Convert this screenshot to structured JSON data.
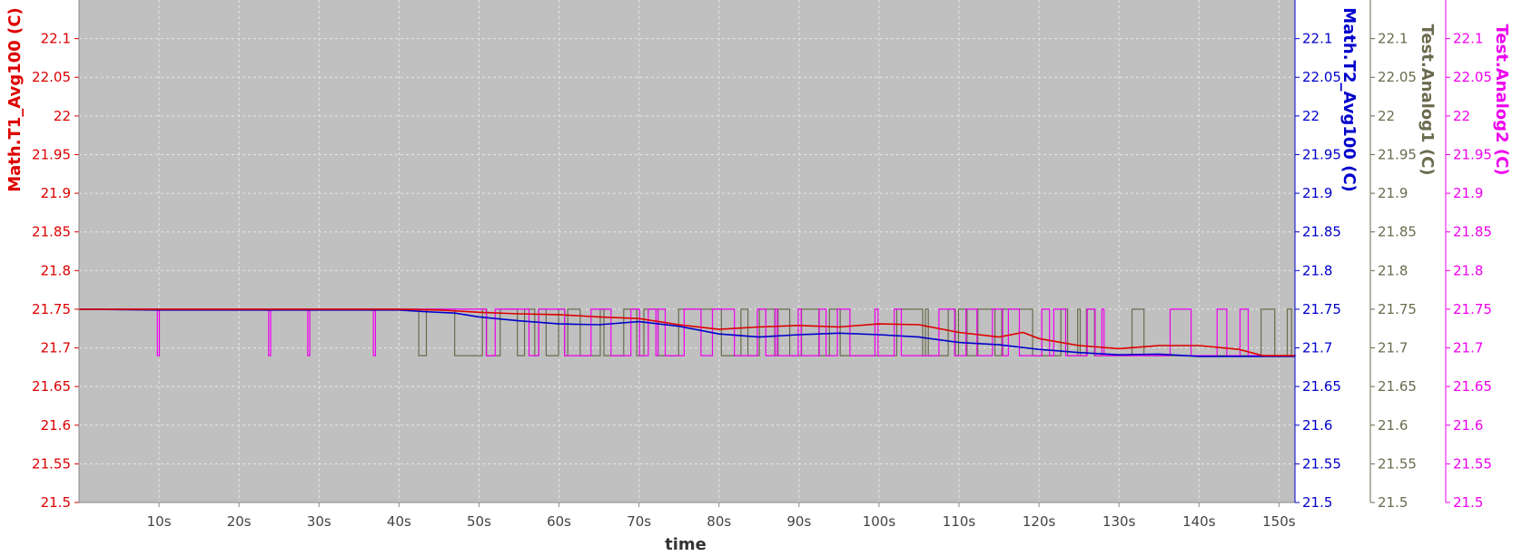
{
  "chart_data": {
    "type": "line",
    "xlabel": "time",
    "x_ticks": [
      "10s",
      "20s",
      "30s",
      "40s",
      "50s",
      "60s",
      "70s",
      "80s",
      "90s",
      "100s",
      "110s",
      "120s",
      "130s",
      "140s",
      "150s"
    ],
    "x_tick_values": [
      10,
      20,
      30,
      40,
      50,
      60,
      70,
      80,
      90,
      100,
      110,
      120,
      130,
      140,
      150
    ],
    "xlim": [
      0,
      152
    ],
    "ylim": [
      21.5,
      22.15
    ],
    "y_ticks": [
      "21.5",
      "21.55",
      "21.6",
      "21.65",
      "21.7",
      "21.75",
      "21.8",
      "21.85",
      "21.9",
      "21.95",
      "22",
      "22.05",
      "22.1"
    ],
    "y_tick_values": [
      21.5,
      21.55,
      21.6,
      21.65,
      21.7,
      21.75,
      21.8,
      21.85,
      21.9,
      21.95,
      22.0,
      22.05,
      22.1
    ],
    "grid": true,
    "plot_background": "#c0c0c0",
    "axes": [
      {
        "label": "Math.T1_Avg100 (C)",
        "color": "#dd0000",
        "side": "left"
      },
      {
        "label": "Math.T2_Avg100 (C)",
        "color": "#0000cc",
        "side": "right"
      },
      {
        "label": "Test.Analog1 (C)",
        "color": "#6b6b4f",
        "side": "right"
      },
      {
        "label": "Test.Analog2 (C)",
        "color": "#ee00ee",
        "side": "right"
      }
    ],
    "series": [
      {
        "name": "Math.T1_Avg100 (C)",
        "color": "#dd0000",
        "style": "line",
        "x": [
          0,
          10,
          20,
          30,
          40,
          45,
          50,
          55,
          60,
          65,
          70,
          75,
          80,
          85,
          90,
          95,
          100,
          105,
          110,
          115,
          118,
          120,
          125,
          130,
          135,
          140,
          145,
          148,
          152
        ],
        "y": [
          21.75,
          21.75,
          21.75,
          21.75,
          21.75,
          21.749,
          21.746,
          21.744,
          21.743,
          21.74,
          21.738,
          21.73,
          21.724,
          21.727,
          21.729,
          21.727,
          21.731,
          21.73,
          21.72,
          21.714,
          21.72,
          21.712,
          21.703,
          21.699,
          21.703,
          21.703,
          21.698,
          21.69,
          21.69
        ]
      },
      {
        "name": "Math.T2_Avg100 (C)",
        "color": "#0000cc",
        "style": "line",
        "x": [
          0,
          10,
          20,
          30,
          40,
          43,
          47,
          50,
          55,
          60,
          65,
          70,
          75,
          80,
          85,
          90,
          95,
          100,
          105,
          110,
          115,
          120,
          125,
          130,
          135,
          140,
          145,
          152
        ],
        "y": [
          21.75,
          21.749,
          21.749,
          21.749,
          21.749,
          21.747,
          21.745,
          21.74,
          21.735,
          21.731,
          21.73,
          21.734,
          21.728,
          21.718,
          21.714,
          21.717,
          21.719,
          21.717,
          21.714,
          21.707,
          21.704,
          21.698,
          21.694,
          21.691,
          21.692,
          21.689,
          21.689,
          21.689
        ]
      },
      {
        "name": "Test.Analog1 (C)",
        "color": "#6b6b4f",
        "style": "step-noise",
        "levels": [
          21.69,
          21.75
        ],
        "x_start": 41,
        "x_end": 152
      },
      {
        "name": "Test.Analog2 (C)",
        "color": "#ee00ee",
        "style": "step-noise",
        "levels": [
          21.69,
          21.75
        ],
        "early_dips_x": [
          9.8,
          23.7,
          28.6,
          36.8
        ],
        "x_start": 44,
        "x_end": 146
      }
    ]
  }
}
